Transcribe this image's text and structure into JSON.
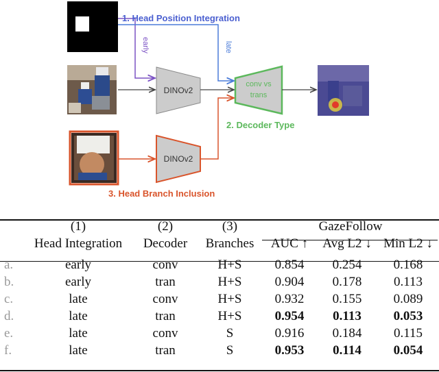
{
  "diagram": {
    "label1": "1. Head Position Integration",
    "label_early": "early",
    "label_late": "late",
    "encoder_main": "DINOv2",
    "encoder_head": "DINOv2",
    "decoder_text1": "conv vs",
    "decoder_text2": "trans",
    "label2": "2. Decoder Type",
    "label3": "3. Head Branch Inclusion",
    "colors": {
      "head_position": "#7b52c4",
      "late_arrow": "#4a7bd8",
      "decoder": "#5cb85c",
      "head_branch": "#d9542b",
      "encoder_fill": "#cccccc"
    }
  },
  "table": {
    "header1": [
      "(1)",
      "(2)",
      "(3)",
      "GazeFollow"
    ],
    "header2": [
      "Head Integration",
      "Decoder",
      "Branches",
      "AUC ↑",
      "Avg L2 ↓",
      "Min L2 ↓"
    ],
    "rows": [
      {
        "label": "a.",
        "integration": "early",
        "decoder": "conv",
        "branches": "H+S",
        "auc": "0.854",
        "avg": "0.254",
        "min": "0.168",
        "bold": false
      },
      {
        "label": "b.",
        "integration": "early",
        "decoder": "tran",
        "branches": "H+S",
        "auc": "0.904",
        "avg": "0.178",
        "min": "0.113",
        "bold": false
      },
      {
        "label": "c.",
        "integration": "late",
        "decoder": "conv",
        "branches": "H+S",
        "auc": "0.932",
        "avg": "0.155",
        "min": "0.089",
        "bold": false
      },
      {
        "label": "d.",
        "integration": "late",
        "decoder": "tran",
        "branches": "H+S",
        "auc": "0.954",
        "avg": "0.113",
        "min": "0.053",
        "bold": true
      },
      {
        "label": "e.",
        "integration": "late",
        "decoder": "conv",
        "branches": "S",
        "auc": "0.916",
        "avg": "0.184",
        "min": "0.115",
        "bold": false
      },
      {
        "label": "f.",
        "integration": "late",
        "decoder": "tran",
        "branches": "S",
        "auc": "0.953",
        "avg": "0.114",
        "min": "0.054",
        "bold": true
      }
    ]
  }
}
